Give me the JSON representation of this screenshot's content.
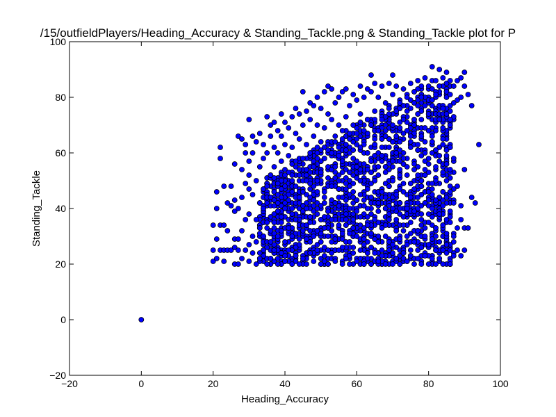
{
  "chart_data": {
    "type": "scatter",
    "title": "/15/outfieldPlayers/Heading_Accuracy & Standing_Tackle.png & Standing_Tackle plot for P",
    "xlabel": "Heading_Accuracy",
    "ylabel": "Standing_Tackle",
    "xlim": [
      -20,
      100
    ],
    "ylim": [
      -20,
      100
    ],
    "xticks": [
      "−20",
      "0",
      "20",
      "40",
      "60",
      "80",
      "100"
    ],
    "yticks": [
      "−20",
      "0",
      "20",
      "40",
      "60",
      "80",
      "100"
    ],
    "grid": false,
    "marker_color": "#0000ff",
    "marker_edge": "#000000",
    "points": [
      [
        0,
        0
      ],
      [
        20,
        21
      ],
      [
        20,
        25
      ],
      [
        20,
        34
      ],
      [
        21,
        22
      ],
      [
        21,
        29
      ],
      [
        21,
        40
      ],
      [
        21,
        46
      ],
      [
        22,
        25
      ],
      [
        22,
        34
      ],
      [
        22,
        58
      ],
      [
        22,
        62
      ],
      [
        23,
        21
      ],
      [
        23,
        25
      ],
      [
        23,
        34
      ],
      [
        23,
        48
      ],
      [
        24,
        25
      ],
      [
        24,
        32
      ],
      [
        24,
        42
      ],
      [
        25,
        25
      ],
      [
        25,
        41
      ],
      [
        25,
        48
      ],
      [
        26,
        20
      ],
      [
        26,
        26
      ],
      [
        26,
        29
      ],
      [
        26,
        39
      ],
      [
        26,
        43
      ],
      [
        26,
        56
      ],
      [
        27,
        20
      ],
      [
        27,
        25
      ],
      [
        27,
        29
      ],
      [
        27,
        40
      ],
      [
        27,
        66
      ],
      [
        28,
        22
      ],
      [
        28,
        32
      ],
      [
        28,
        44
      ],
      [
        28,
        54
      ],
      [
        28,
        65
      ],
      [
        29,
        25
      ],
      [
        29,
        36
      ],
      [
        29,
        49
      ],
      [
        29,
        60
      ],
      [
        29,
        63
      ],
      [
        30,
        21
      ],
      [
        30,
        27
      ],
      [
        30,
        38
      ],
      [
        30,
        47
      ],
      [
        30,
        52
      ],
      [
        30,
        57
      ],
      [
        30,
        72
      ],
      [
        31,
        24
      ],
      [
        31,
        30
      ],
      [
        31,
        45
      ],
      [
        31,
        60
      ],
      [
        31,
        66
      ],
      [
        32,
        20
      ],
      [
        32,
        28
      ],
      [
        32,
        36
      ],
      [
        32,
        50
      ],
      [
        32,
        64
      ],
      [
        33,
        22
      ],
      [
        33,
        33
      ],
      [
        33,
        42
      ],
      [
        33,
        55
      ],
      [
        33,
        67
      ],
      [
        34,
        25
      ],
      [
        34,
        30
      ],
      [
        34,
        40
      ],
      [
        34,
        58
      ],
      [
        34,
        63
      ],
      [
        35,
        20
      ],
      [
        35,
        35
      ],
      [
        35,
        48
      ],
      [
        35,
        60
      ],
      [
        35,
        73
      ],
      [
        36,
        22
      ],
      [
        36,
        28
      ],
      [
        36,
        44
      ],
      [
        36,
        52
      ],
      [
        36,
        66
      ],
      [
        36,
        70
      ],
      [
        37,
        25
      ],
      [
        37,
        38
      ],
      [
        37,
        55
      ],
      [
        37,
        62
      ],
      [
        37,
        71
      ],
      [
        38,
        20
      ],
      [
        38,
        30
      ],
      [
        38,
        42
      ],
      [
        38,
        49
      ],
      [
        38,
        60
      ],
      [
        38,
        68
      ],
      [
        39,
        24
      ],
      [
        39,
        35
      ],
      [
        39,
        47
      ],
      [
        39,
        57
      ],
      [
        39,
        66
      ],
      [
        39,
        74
      ],
      [
        40,
        21
      ],
      [
        40,
        28
      ],
      [
        40,
        40
      ],
      [
        40,
        52
      ],
      [
        40,
        63
      ],
      [
        40,
        71
      ],
      [
        41,
        25
      ],
      [
        41,
        33
      ],
      [
        41,
        45
      ],
      [
        41,
        59
      ],
      [
        41,
        69
      ],
      [
        42,
        20
      ],
      [
        42,
        30
      ],
      [
        42,
        38
      ],
      [
        42,
        50
      ],
      [
        42,
        62
      ],
      [
        42,
        73
      ],
      [
        43,
        23
      ],
      [
        43,
        36
      ],
      [
        43,
        48
      ],
      [
        43,
        57
      ],
      [
        43,
        67
      ],
      [
        43,
        76
      ],
      [
        44,
        20
      ],
      [
        44,
        27
      ],
      [
        44,
        42
      ],
      [
        44,
        54
      ],
      [
        44,
        65
      ],
      [
        44,
        74
      ],
      [
        45,
        22
      ],
      [
        45,
        32
      ],
      [
        45,
        46
      ],
      [
        45,
        58
      ],
      [
        45,
        70
      ],
      [
        45,
        82
      ],
      [
        46,
        20
      ],
      [
        46,
        29
      ],
      [
        46,
        40
      ],
      [
        46,
        52
      ],
      [
        46,
        63
      ],
      [
        46,
        75
      ],
      [
        47,
        24
      ],
      [
        47,
        35
      ],
      [
        47,
        49
      ],
      [
        47,
        60
      ],
      [
        47,
        72
      ],
      [
        47,
        78
      ],
      [
        48,
        21
      ],
      [
        48,
        30
      ],
      [
        48,
        43
      ],
      [
        48,
        55
      ],
      [
        48,
        66
      ],
      [
        48,
        77
      ],
      [
        49,
        25
      ],
      [
        49,
        38
      ],
      [
        49,
        50
      ],
      [
        49,
        62
      ],
      [
        49,
        70
      ],
      [
        49,
        80
      ],
      [
        50,
        20
      ],
      [
        50,
        28
      ],
      [
        50,
        41
      ],
      [
        50,
        53
      ],
      [
        50,
        64
      ],
      [
        50,
        76
      ],
      [
        51,
        23
      ],
      [
        51,
        33
      ],
      [
        51,
        46
      ],
      [
        51,
        58
      ],
      [
        51,
        69
      ],
      [
        51,
        82
      ],
      [
        52,
        20
      ],
      [
        52,
        30
      ],
      [
        52,
        39
      ],
      [
        52,
        51
      ],
      [
        52,
        61
      ],
      [
        52,
        74
      ],
      [
        52,
        84
      ],
      [
        53,
        24
      ],
      [
        53,
        36
      ],
      [
        53,
        48
      ],
      [
        53,
        60
      ],
      [
        53,
        72
      ],
      [
        53,
        83
      ],
      [
        54,
        21
      ],
      [
        54,
        29
      ],
      [
        54,
        42
      ],
      [
        54,
        55
      ],
      [
        54,
        66
      ],
      [
        54,
        78
      ],
      [
        55,
        25
      ],
      [
        55,
        34
      ],
      [
        55,
        47
      ],
      [
        55,
        59
      ],
      [
        55,
        70
      ],
      [
        55,
        80
      ],
      [
        56,
        20
      ],
      [
        56,
        31
      ],
      [
        56,
        44
      ],
      [
        56,
        57
      ],
      [
        56,
        68
      ],
      [
        56,
        82
      ],
      [
        57,
        22
      ],
      [
        57,
        36
      ],
      [
        57,
        49
      ],
      [
        57,
        61
      ],
      [
        57,
        73
      ],
      [
        57,
        83
      ],
      [
        58,
        20
      ],
      [
        58,
        28
      ],
      [
        58,
        40
      ],
      [
        58,
        53
      ],
      [
        58,
        65
      ],
      [
        58,
        77
      ],
      [
        59,
        24
      ],
      [
        59,
        33
      ],
      [
        59,
        46
      ],
      [
        59,
        58
      ],
      [
        59,
        70
      ],
      [
        59,
        81
      ],
      [
        60,
        21
      ],
      [
        60,
        30
      ],
      [
        60,
        43
      ],
      [
        60,
        55
      ],
      [
        60,
        67
      ],
      [
        60,
        79
      ],
      [
        61,
        25
      ],
      [
        61,
        37
      ],
      [
        61,
        50
      ],
      [
        61,
        62
      ],
      [
        61,
        74
      ],
      [
        61,
        84
      ],
      [
        62,
        20
      ],
      [
        62,
        29
      ],
      [
        62,
        41
      ],
      [
        62,
        56
      ],
      [
        62,
        68
      ],
      [
        62,
        80
      ],
      [
        63,
        22
      ],
      [
        63,
        34
      ],
      [
        63,
        47
      ],
      [
        63,
        60
      ],
      [
        63,
        72
      ],
      [
        63,
        83
      ],
      [
        64,
        20
      ],
      [
        64,
        31
      ],
      [
        64,
        44
      ],
      [
        64,
        57
      ],
      [
        64,
        70
      ],
      [
        64,
        82
      ],
      [
        64,
        88
      ],
      [
        65,
        24
      ],
      [
        65,
        36
      ],
      [
        65,
        50
      ],
      [
        65,
        63
      ],
      [
        65,
        75
      ],
      [
        65,
        85
      ],
      [
        66,
        21
      ],
      [
        66,
        28
      ],
      [
        66,
        42
      ],
      [
        66,
        55
      ],
      [
        66,
        68
      ],
      [
        66,
        80
      ],
      [
        67,
        23
      ],
      [
        67,
        33
      ],
      [
        67,
        46
      ],
      [
        67,
        59
      ],
      [
        67,
        72
      ],
      [
        67,
        84
      ],
      [
        68,
        20
      ],
      [
        68,
        30
      ],
      [
        68,
        40
      ],
      [
        68,
        53
      ],
      [
        68,
        66
      ],
      [
        68,
        78
      ],
      [
        69,
        25
      ],
      [
        69,
        38
      ],
      [
        69,
        48
      ],
      [
        69,
        62
      ],
      [
        69,
        74
      ],
      [
        69,
        85
      ],
      [
        70,
        20
      ],
      [
        70,
        27
      ],
      [
        70,
        44
      ],
      [
        70,
        57
      ],
      [
        70,
        70
      ],
      [
        70,
        81
      ],
      [
        70,
        88
      ],
      [
        71,
        22
      ],
      [
        71,
        32
      ],
      [
        71,
        45
      ],
      [
        71,
        60
      ],
      [
        71,
        75
      ],
      [
        71,
        84
      ],
      [
        72,
        20
      ],
      [
        72,
        29
      ],
      [
        72,
        38
      ],
      [
        72,
        52
      ],
      [
        72,
        64
      ],
      [
        72,
        78
      ],
      [
        73,
        24
      ],
      [
        73,
        34
      ],
      [
        73,
        46
      ],
      [
        73,
        58
      ],
      [
        73,
        72
      ],
      [
        73,
        83
      ],
      [
        74,
        21
      ],
      [
        74,
        30
      ],
      [
        74,
        40
      ],
      [
        74,
        55
      ],
      [
        74,
        68
      ],
      [
        74,
        80
      ],
      [
        75,
        25
      ],
      [
        75,
        35
      ],
      [
        75,
        44
      ],
      [
        75,
        62
      ],
      [
        75,
        76
      ],
      [
        75,
        85
      ],
      [
        76,
        20
      ],
      [
        76,
        28
      ],
      [
        76,
        39
      ],
      [
        76,
        54
      ],
      [
        76,
        70
      ],
      [
        76,
        82
      ],
      [
        77,
        22
      ],
      [
        77,
        32
      ],
      [
        77,
        44
      ],
      [
        77,
        63
      ],
      [
        77,
        79
      ],
      [
        77,
        86
      ],
      [
        78,
        20
      ],
      [
        78,
        26
      ],
      [
        78,
        36
      ],
      [
        78,
        45
      ],
      [
        78,
        66
      ],
      [
        78,
        80
      ],
      [
        78,
        84
      ],
      [
        79,
        23
      ],
      [
        79,
        30
      ],
      [
        79,
        42
      ],
      [
        79,
        60
      ],
      [
        79,
        77
      ],
      [
        79,
        87
      ],
      [
        80,
        20
      ],
      [
        80,
        27
      ],
      [
        80,
        35
      ],
      [
        80,
        46
      ],
      [
        80,
        56
      ],
      [
        80,
        74
      ],
      [
        80,
        84
      ],
      [
        81,
        22
      ],
      [
        81,
        29
      ],
      [
        81,
        40
      ],
      [
        81,
        64
      ],
      [
        81,
        79
      ],
      [
        81,
        91
      ],
      [
        82,
        20
      ],
      [
        82,
        25
      ],
      [
        82,
        33
      ],
      [
        82,
        43
      ],
      [
        82,
        61
      ],
      [
        82,
        81
      ],
      [
        82,
        86
      ],
      [
        83,
        22
      ],
      [
        83,
        28
      ],
      [
        83,
        38
      ],
      [
        83,
        57
      ],
      [
        83,
        72
      ],
      [
        83,
        84
      ],
      [
        83,
        90
      ],
      [
        84,
        20
      ],
      [
        84,
        25
      ],
      [
        84,
        34
      ],
      [
        84,
        46
      ],
      [
        84,
        65
      ],
      [
        84,
        76
      ],
      [
        84,
        87
      ],
      [
        85,
        24
      ],
      [
        85,
        31
      ],
      [
        85,
        44
      ],
      [
        85,
        56
      ],
      [
        85,
        74
      ],
      [
        85,
        85
      ],
      [
        85,
        89
      ],
      [
        86,
        20
      ],
      [
        86,
        25
      ],
      [
        86,
        37
      ],
      [
        86,
        48
      ],
      [
        86,
        62
      ],
      [
        86,
        81
      ],
      [
        86,
        86
      ],
      [
        87,
        23
      ],
      [
        87,
        28
      ],
      [
        87,
        42
      ],
      [
        87,
        58
      ],
      [
        87,
        78
      ],
      [
        87,
        84
      ],
      [
        88,
        25
      ],
      [
        88,
        33
      ],
      [
        88,
        48
      ],
      [
        88,
        79
      ],
      [
        88,
        86
      ],
      [
        89,
        23
      ],
      [
        89,
        36
      ],
      [
        89,
        41
      ],
      [
        89,
        80
      ],
      [
        89,
        87
      ],
      [
        90,
        25
      ],
      [
        90,
        33
      ],
      [
        90,
        54
      ],
      [
        90,
        84
      ],
      [
        90,
        89
      ],
      [
        91,
        33
      ],
      [
        91,
        81
      ],
      [
        92,
        44
      ],
      [
        92,
        77
      ],
      [
        93,
        42
      ],
      [
        94,
        63
      ]
    ]
  }
}
